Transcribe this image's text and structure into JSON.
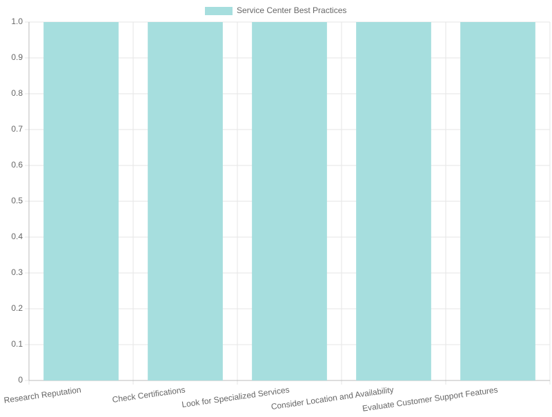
{
  "chart_data": {
    "type": "bar",
    "categories": [
      "Research Reputation",
      "Check Certifications",
      "Look for Specialized Services",
      "Consider Location and Availability",
      "Evaluate Customer Support Features"
    ],
    "series": [
      {
        "name": "Service Center Best Practices",
        "color": "#a6dede",
        "values": [
          1,
          1,
          1,
          1,
          1
        ]
      }
    ],
    "ylim": [
      0,
      1
    ],
    "yticks": [
      0,
      0.1,
      0.2,
      0.3,
      0.4,
      0.5,
      0.6,
      0.7,
      0.8,
      0.9,
      {
        "value": 1,
        "label": "1.0"
      }
    ],
    "grid": true,
    "legend": "top"
  }
}
